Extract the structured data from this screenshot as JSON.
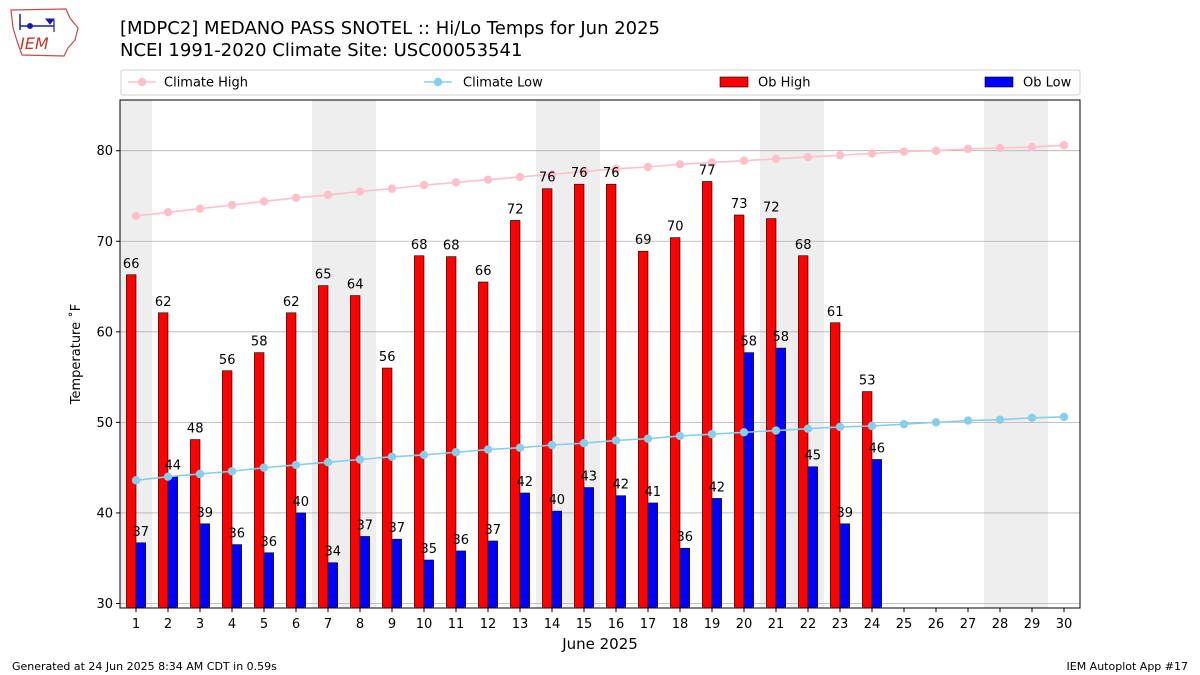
{
  "header": {
    "title_line1": "[MDPC2] MEDANO PASS SNOTEL :: Hi/Lo Temps for Jun 2025",
    "title_line2": "NCEI 1991-2020 Climate Site: USC00053541"
  },
  "logo": {
    "text": "IEM",
    "icon": "iem-iowa-map-logo"
  },
  "footer": {
    "left": "Generated at 24 Jun 2025 8:34 AM CDT in 0.59s",
    "right": "IEM Autoplot App #17"
  },
  "colors": {
    "ob_high": "#ff0000",
    "ob_low": "#0000ff",
    "climate_high": "#ffc0cb",
    "climate_low": "#87ceeb",
    "weekend_shade": "#eeeeee",
    "grid": "#b0b0b0"
  },
  "chart_data": {
    "type": "bar",
    "xlabel": "June 2025",
    "ylabel": "Temperature ˚F",
    "ylim": [
      29.5,
      85.6
    ],
    "xlim": [
      0.5,
      30.5
    ],
    "yticks": [
      30,
      40,
      50,
      60,
      70,
      80
    ],
    "grid": "horizontal",
    "legend_placement": "top",
    "legend": [
      "Climate High",
      "Climate Low",
      "Ob High",
      "Ob Low"
    ],
    "shaded_days": [
      1,
      7,
      8,
      14,
      15,
      21,
      22,
      28,
      29
    ],
    "days": [
      1,
      2,
      3,
      4,
      5,
      6,
      7,
      8,
      9,
      10,
      11,
      12,
      13,
      14,
      15,
      16,
      17,
      18,
      19,
      20,
      21,
      22,
      23,
      24,
      25,
      26,
      27,
      28,
      29,
      30
    ],
    "series": [
      {
        "name": "Ob High",
        "kind": "bar",
        "values": [
          66.3,
          62.1,
          48.1,
          55.7,
          57.7,
          62.1,
          65.1,
          64.0,
          56.0,
          68.4,
          68.3,
          65.5,
          72.3,
          75.8,
          76.3,
          76.3,
          68.9,
          70.4,
          76.6,
          72.9,
          72.5,
          68.4,
          61.0,
          53.4
        ]
      },
      {
        "name": "Ob Low",
        "kind": "bar",
        "values": [
          36.7,
          44.0,
          38.8,
          36.5,
          35.6,
          40.0,
          34.5,
          37.4,
          37.1,
          34.8,
          35.8,
          36.9,
          42.2,
          40.2,
          42.8,
          41.9,
          41.1,
          36.1,
          41.6,
          57.7,
          58.2,
          45.1,
          38.8,
          45.9
        ]
      },
      {
        "name": "Climate High",
        "kind": "line",
        "values": [
          72.8,
          73.2,
          73.6,
          74.0,
          74.4,
          74.8,
          75.1,
          75.5,
          75.8,
          76.2,
          76.5,
          76.8,
          77.1,
          77.4,
          77.7,
          78.0,
          78.2,
          78.5,
          78.7,
          78.9,
          79.1,
          79.3,
          79.5,
          79.7,
          79.9,
          80.0,
          80.2,
          80.3,
          80.4,
          80.6
        ]
      },
      {
        "name": "Climate Low",
        "kind": "line",
        "values": [
          43.6,
          44.0,
          44.3,
          44.6,
          45.0,
          45.3,
          45.6,
          45.9,
          46.2,
          46.4,
          46.7,
          47.0,
          47.2,
          47.5,
          47.7,
          48.0,
          48.2,
          48.5,
          48.7,
          48.9,
          49.1,
          49.3,
          49.5,
          49.6,
          49.8,
          50.0,
          50.2,
          50.3,
          50.5,
          50.6
        ]
      }
    ],
    "high_labels": [
      "66",
      "62",
      "48",
      "56",
      "58",
      "62",
      "65",
      "64",
      "56",
      "68",
      "68",
      "66",
      "72",
      "76",
      "76",
      "76",
      "69",
      "70",
      "77",
      "73",
      "72",
      "68",
      "61",
      "53"
    ],
    "low_labels": [
      "37",
      "44",
      "39",
      "36",
      "36",
      "40",
      "34",
      "37",
      "37",
      "35",
      "36",
      "37",
      "42",
      "40",
      "43",
      "42",
      "41",
      "36",
      "42",
      "58",
      "58",
      "45",
      "39",
      "46"
    ]
  }
}
